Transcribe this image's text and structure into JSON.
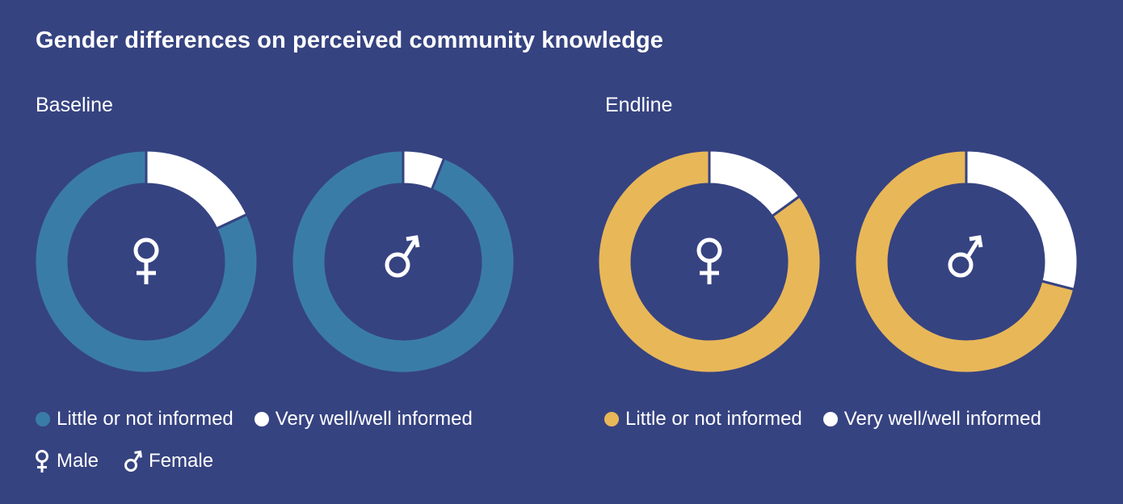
{
  "title": "Gender differences on perceived community knowledge",
  "colors": {
    "background": "#364381",
    "baseline": "#3a7ca8",
    "endline": "#e8b758",
    "informed": "#ffffff"
  },
  "legend": {
    "little": "Little or not informed",
    "very": "Very well/well informed",
    "male": "Male",
    "female": "Female"
  },
  "chart_data": [
    {
      "type": "pie",
      "panel": "Baseline",
      "gender_icon": "female-symbol-icon",
      "categories": [
        "Little or not informed",
        "Very well/well informed"
      ],
      "values": [
        82,
        18
      ]
    },
    {
      "type": "pie",
      "panel": "Baseline",
      "gender_icon": "male-symbol-icon",
      "categories": [
        "Little or not informed",
        "Very well/well informed"
      ],
      "values": [
        94,
        6
      ]
    },
    {
      "type": "pie",
      "panel": "Endline",
      "gender_icon": "female-symbol-icon",
      "categories": [
        "Little or not informed",
        "Very well/well informed"
      ],
      "values": [
        85,
        15
      ]
    },
    {
      "type": "pie",
      "panel": "Endline",
      "gender_icon": "male-symbol-icon",
      "categories": [
        "Little or not informed",
        "Very well/well informed"
      ],
      "values": [
        71,
        29
      ]
    }
  ]
}
